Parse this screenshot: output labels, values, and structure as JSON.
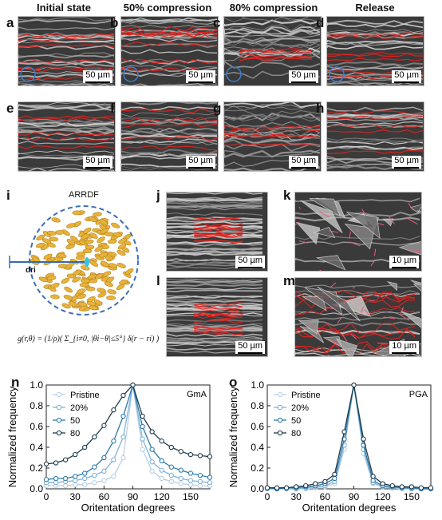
{
  "columns": [
    "Initial state",
    "50% compression",
    "80% compression",
    "Release"
  ],
  "row1_labels": [
    "a",
    "b",
    "c",
    "d"
  ],
  "row2_labels": [
    "e",
    "f",
    "g",
    "h"
  ],
  "scale_50": "50 µm",
  "scale_10": "10 µm",
  "panel_i": {
    "label": "i",
    "title": "ARRDF",
    "dr_label": "dri"
  },
  "panel_labels": {
    "j": "j",
    "k": "k",
    "l": "l",
    "m": "m"
  },
  "formula": "g(r,θ) = (1/ρ)( Σ_{i≠0, |θi−θ|≤5°} δ(r − ri) )",
  "chart_data": [
    {
      "panel": "n",
      "type": "line",
      "label": "GmA",
      "xlabel": "Oritentation degrees",
      "ylabel": "Normalized frequency",
      "xlim": [
        0,
        170
      ],
      "ylim": [
        0,
        1.0
      ],
      "xticks": [
        0,
        30,
        60,
        90,
        120,
        150
      ],
      "yticks": [
        0.0,
        0.2,
        0.4,
        0.6,
        0.8,
        1.0
      ],
      "x": [
        0,
        10,
        20,
        30,
        40,
        50,
        60,
        70,
        80,
        90,
        100,
        110,
        120,
        130,
        140,
        150,
        160,
        170
      ],
      "series": [
        {
          "name": "Pristine",
          "color": "#b9cfe6",
          "values": [
            0.03,
            0.03,
            0.03,
            0.04,
            0.04,
            0.06,
            0.08,
            0.12,
            0.3,
            1.0,
            0.38,
            0.17,
            0.1,
            0.07,
            0.05,
            0.04,
            0.03,
            0.03
          ]
        },
        {
          "name": "20%",
          "color": "#7fb3d9",
          "values": [
            0.06,
            0.06,
            0.07,
            0.08,
            0.1,
            0.13,
            0.17,
            0.28,
            0.5,
            1.0,
            0.48,
            0.26,
            0.18,
            0.13,
            0.1,
            0.08,
            0.07,
            0.06
          ]
        },
        {
          "name": "50",
          "color": "#2f7aa8",
          "values": [
            0.09,
            0.1,
            0.1,
            0.12,
            0.15,
            0.21,
            0.3,
            0.46,
            0.7,
            1.0,
            0.6,
            0.38,
            0.27,
            0.21,
            0.18,
            0.15,
            0.13,
            0.11
          ]
        },
        {
          "name": "80",
          "color": "#1f3c4f",
          "values": [
            0.24,
            0.25,
            0.28,
            0.33,
            0.4,
            0.5,
            0.61,
            0.76,
            0.9,
            1.0,
            0.7,
            0.55,
            0.46,
            0.4,
            0.36,
            0.33,
            0.32,
            0.31
          ]
        }
      ]
    },
    {
      "panel": "o",
      "type": "line",
      "label": "PGA",
      "xlabel": "Oritentation degrees",
      "ylabel": "Normalized frequency",
      "xlim": [
        0,
        170
      ],
      "ylim": [
        0,
        1.0
      ],
      "xticks": [
        0,
        30,
        60,
        90,
        120,
        150
      ],
      "yticks": [
        0.0,
        0.2,
        0.4,
        0.6,
        0.8,
        1.0
      ],
      "x": [
        0,
        10,
        20,
        30,
        40,
        50,
        60,
        70,
        80,
        90,
        100,
        110,
        120,
        130,
        140,
        150,
        160,
        170
      ],
      "series": [
        {
          "name": "Pristine",
          "color": "#b9cfe6",
          "values": [
            0.0,
            0.0,
            0.0,
            0.0,
            0.0,
            0.01,
            0.02,
            0.05,
            0.38,
            1.0,
            0.34,
            0.05,
            0.02,
            0.01,
            0.0,
            0.0,
            0.0,
            0.0
          ]
        },
        {
          "name": "20%",
          "color": "#7fb3d9",
          "values": [
            0.0,
            0.0,
            0.0,
            0.0,
            0.01,
            0.02,
            0.03,
            0.07,
            0.42,
            1.0,
            0.38,
            0.06,
            0.02,
            0.01,
            0.01,
            0.0,
            0.0,
            0.0
          ]
        },
        {
          "name": "50",
          "color": "#2f7aa8",
          "values": [
            0.01,
            0.0,
            0.01,
            0.01,
            0.02,
            0.03,
            0.05,
            0.1,
            0.48,
            1.0,
            0.42,
            0.08,
            0.03,
            0.02,
            0.01,
            0.01,
            0.0,
            0.0
          ]
        },
        {
          "name": "80",
          "color": "#1f3c4f",
          "values": [
            0.01,
            0.01,
            0.01,
            0.02,
            0.03,
            0.05,
            0.07,
            0.14,
            0.55,
            1.0,
            0.48,
            0.12,
            0.05,
            0.03,
            0.02,
            0.02,
            0.01,
            0.01
          ]
        }
      ]
    }
  ]
}
